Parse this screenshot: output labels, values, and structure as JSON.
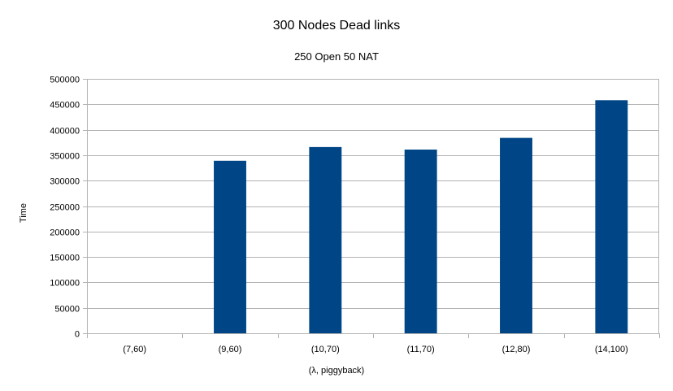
{
  "chart_data": {
    "type": "bar",
    "title": "300 Nodes Dead links",
    "subtitle": "250 Open 50 NAT",
    "xlabel": "(λ, piggyback)",
    "ylabel": "Time",
    "categories": [
      "(7,60)",
      "(9,60)",
      "(10,70)",
      "(11,70)",
      "(12,80)",
      "(14,100)"
    ],
    "values": [
      0,
      339000,
      366000,
      361000,
      384000,
      458000
    ],
    "ylim": [
      0,
      500000
    ],
    "yticks": [
      0,
      50000,
      100000,
      150000,
      200000,
      250000,
      300000,
      350000,
      400000,
      450000,
      500000
    ],
    "grid": true,
    "legend": "none",
    "bar_color": "#004586",
    "grid_color": "#b3b3b3"
  }
}
